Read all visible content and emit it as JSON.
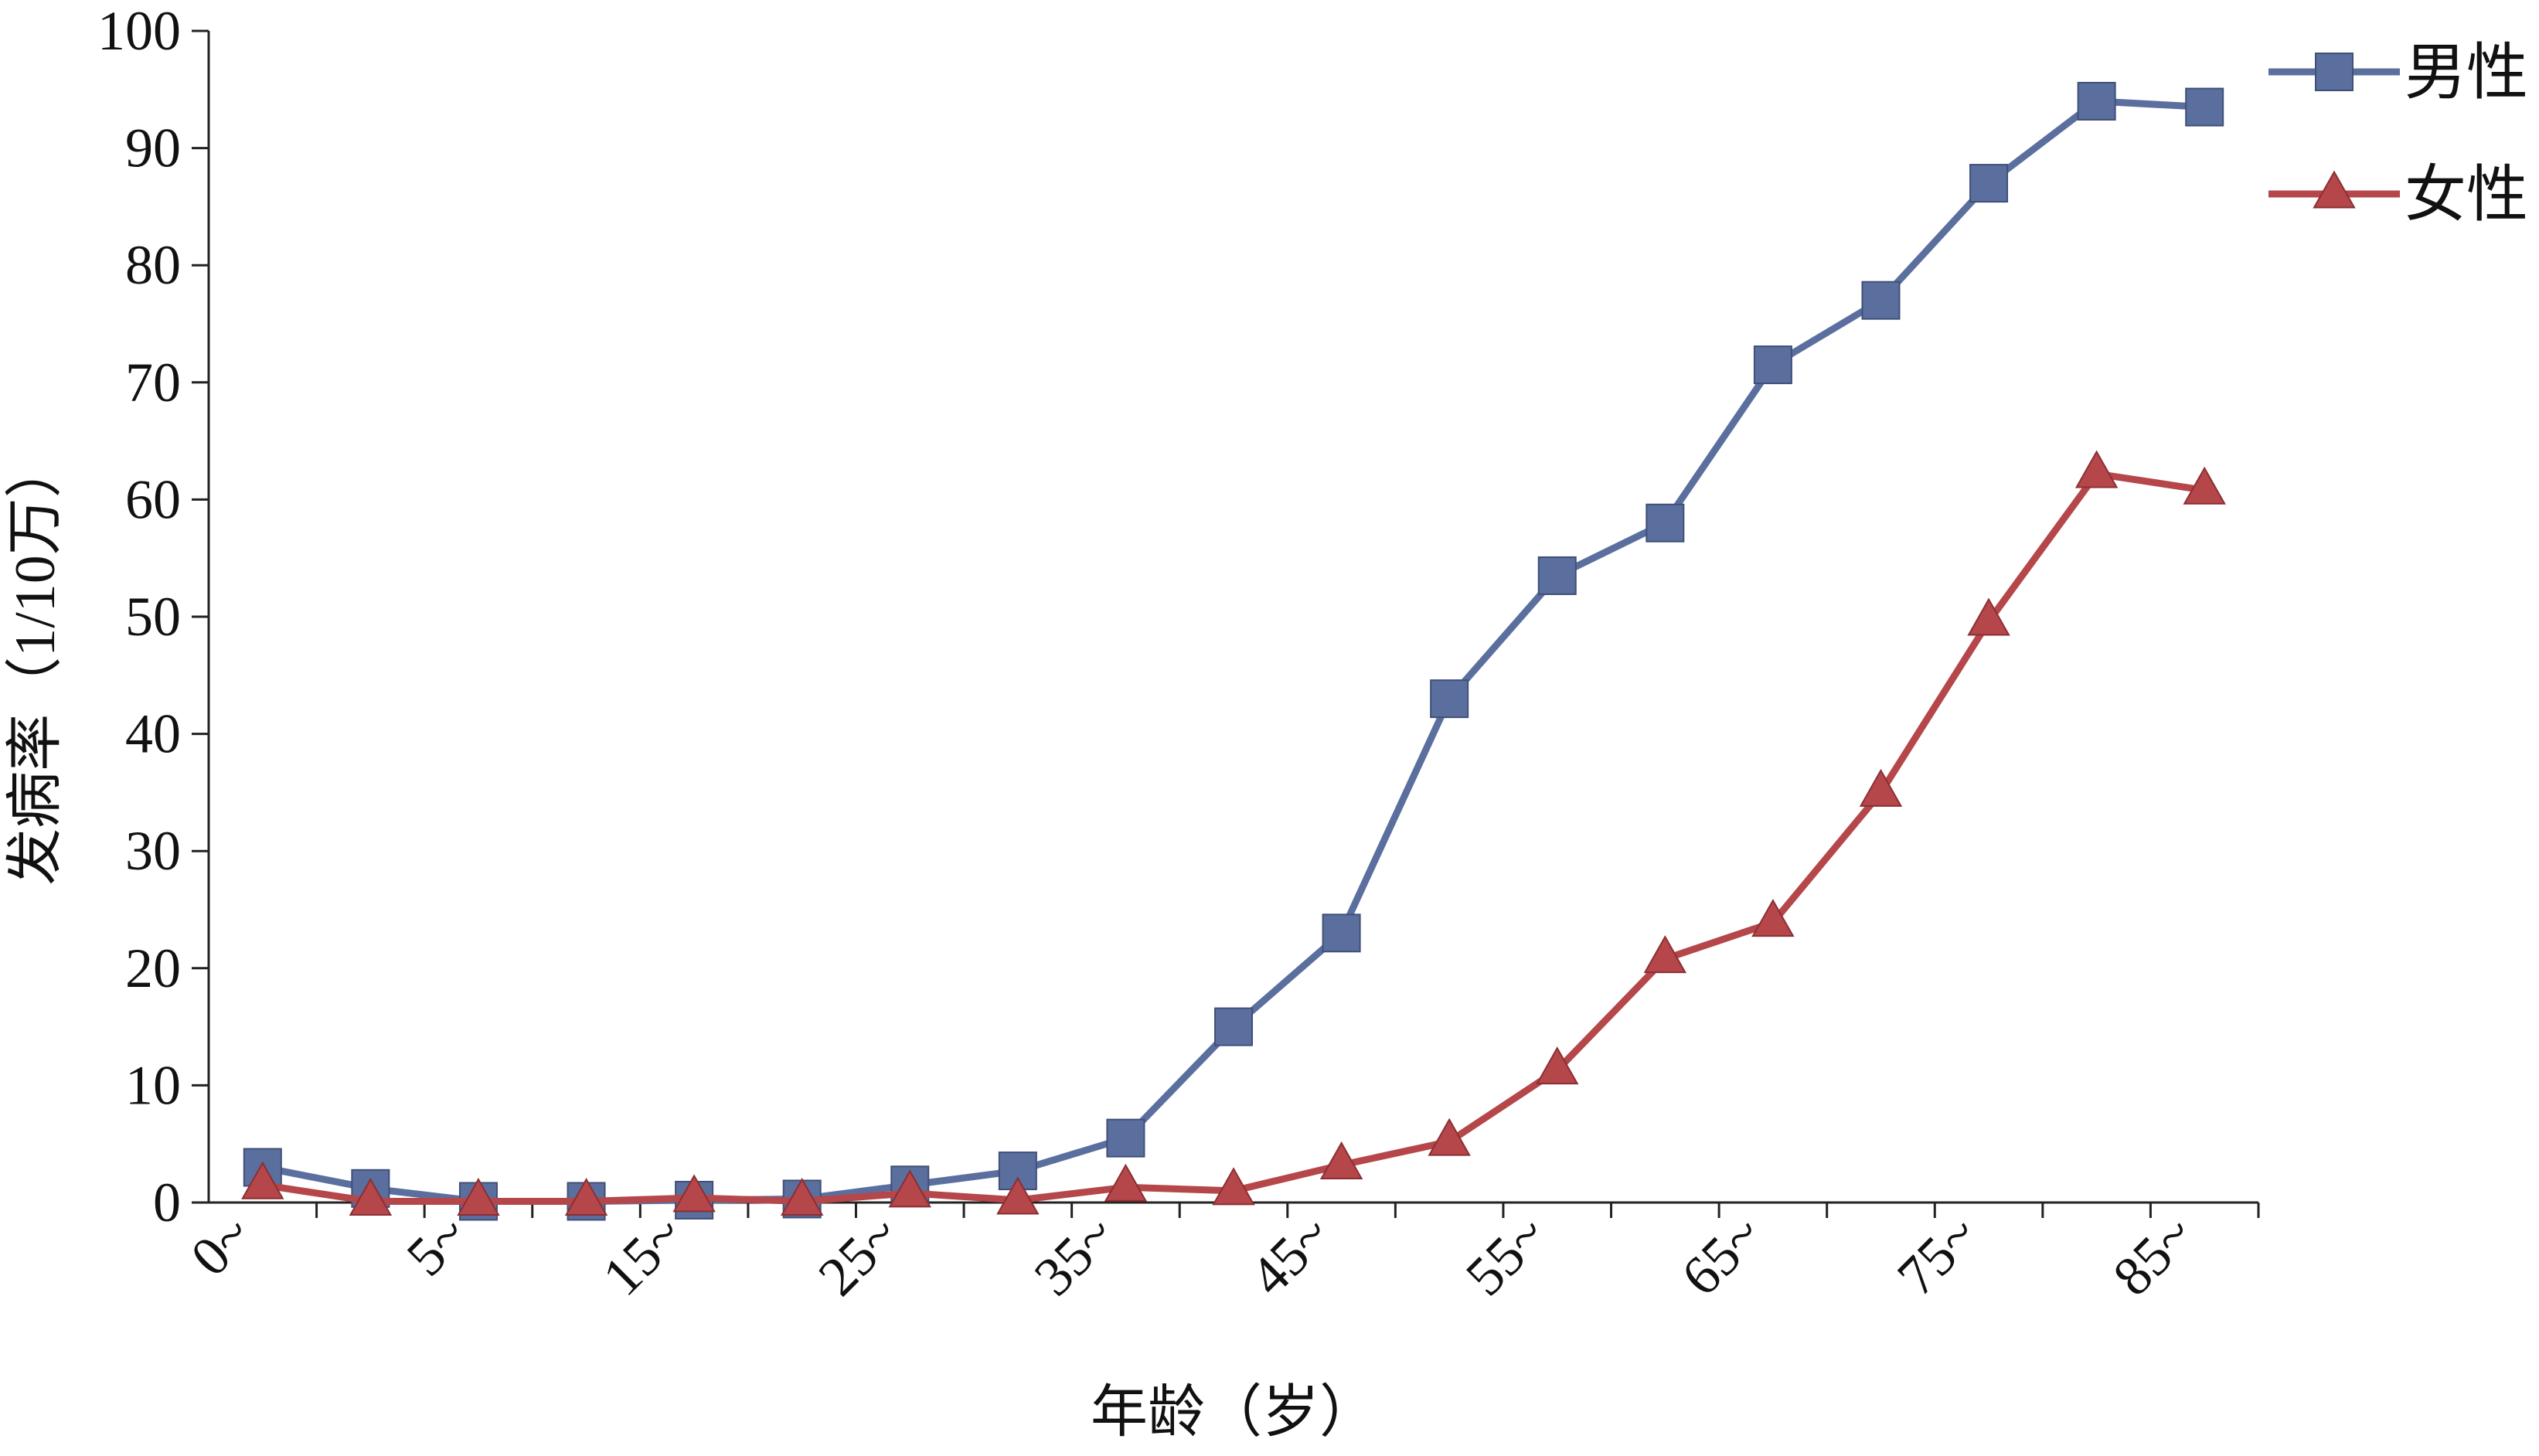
{
  "chart_data": {
    "type": "line",
    "title": "",
    "xlabel": "年龄（岁）",
    "ylabel": "发病率（1/10万）",
    "ylim": [
      0,
      100
    ],
    "yticks": [
      "0",
      "10",
      "20",
      "30",
      "40",
      "50",
      "60",
      "70",
      "80",
      "90",
      "100"
    ],
    "x_tick_labels": [
      "0~",
      "5~",
      "15~",
      "25~",
      "35~",
      "45~",
      "55~",
      "65~",
      "75~",
      "85~"
    ],
    "categories": [
      "0~",
      "",
      "5~",
      "",
      "15~",
      "",
      "25~",
      "",
      "35~",
      "",
      "45~",
      "",
      "55~",
      "",
      "65~",
      "",
      "75~",
      "",
      "85~"
    ],
    "grid": false,
    "legend_position": "top-right",
    "series": [
      {
        "name": "男性",
        "marker": "square",
        "color": "#5b6f9e",
        "values": [
          3.0,
          1.2,
          0.1,
          0.1,
          0.2,
          0.3,
          1.5,
          2.7,
          5.5,
          15.0,
          23.0,
          43.0,
          53.5,
          58.0,
          71.5,
          77.0,
          87.0,
          94.0,
          93.5
        ]
      },
      {
        "name": "女性",
        "marker": "triangle",
        "color": "#b5464a",
        "values": [
          1.5,
          0.1,
          0.1,
          0.1,
          0.4,
          0.1,
          0.8,
          0.2,
          1.3,
          1.0,
          3.2,
          5.2,
          11.3,
          20.8,
          23.9,
          35.0,
          49.6,
          62.2,
          60.8
        ]
      }
    ]
  }
}
